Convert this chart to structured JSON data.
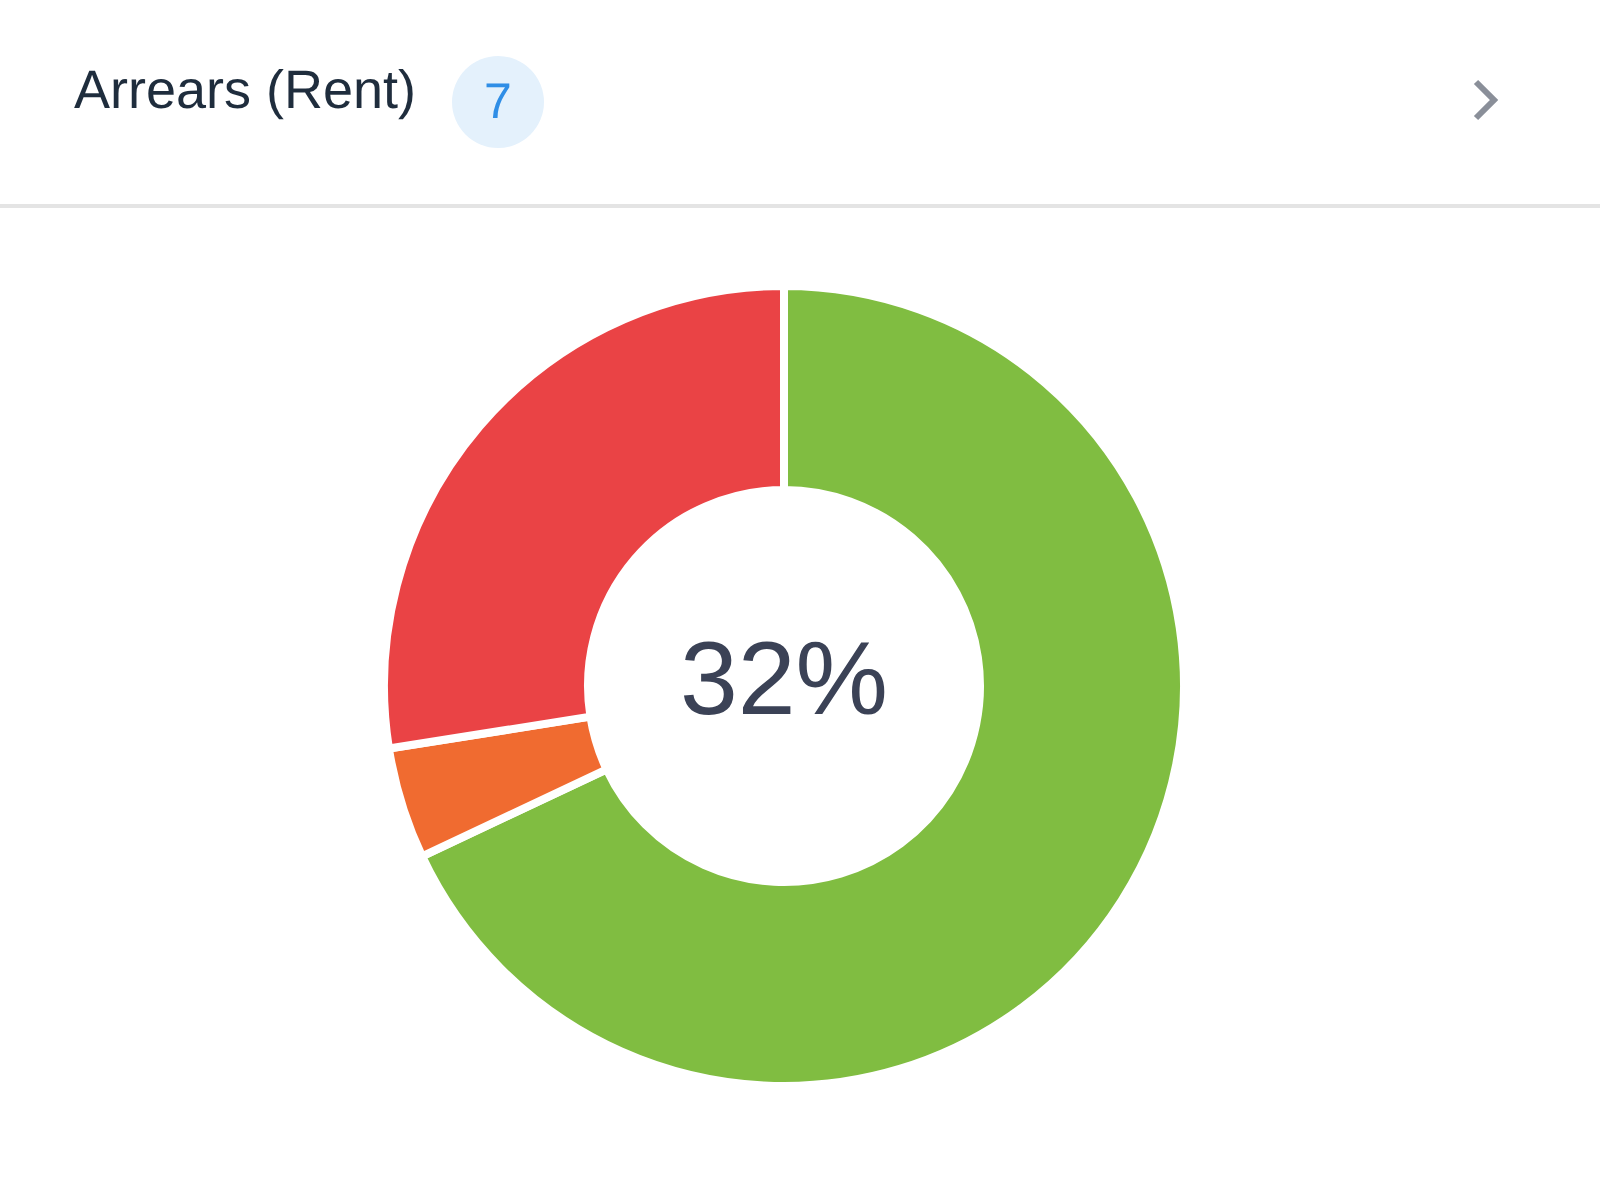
{
  "chart_data": {
    "type": "donut",
    "title": "Arrears (Rent)",
    "subtitle": "7",
    "categories": [
      null,
      null,
      null
    ],
    "values": [
      68,
      4.5,
      27.5
    ],
    "colors": [
      "#80bd41",
      "#f06b30",
      "#ea4345"
    ],
    "annotations": [
      "32%"
    ]
  }
}
